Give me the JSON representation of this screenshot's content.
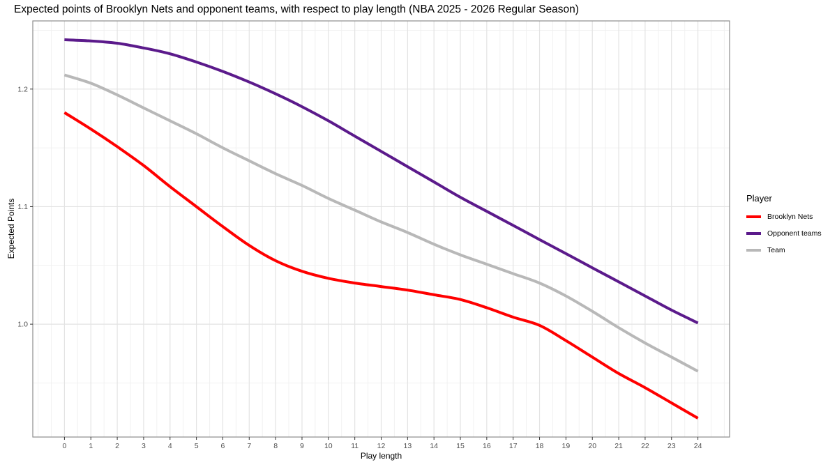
{
  "chart_data": {
    "type": "line",
    "title": "Expected points of Brooklyn Nets and opponent teams, with respect to play length (NBA 2025 - 2026 Regular Season)",
    "xlabel": "Play length",
    "ylabel": "Expected Points",
    "legend": {
      "title": "Player",
      "position": "right"
    },
    "x": [
      0,
      1,
      2,
      3,
      4,
      5,
      6,
      7,
      8,
      9,
      10,
      11,
      12,
      13,
      14,
      15,
      16,
      17,
      18,
      19,
      20,
      21,
      22,
      23,
      24
    ],
    "series": [
      {
        "name": "Brooklyn Nets",
        "color": "#ff0000",
        "values": [
          1.18,
          1.166,
          1.151,
          1.135,
          1.117,
          1.1,
          1.083,
          1.067,
          1.054,
          1.045,
          1.039,
          1.035,
          1.032,
          1.029,
          1.025,
          1.021,
          1.014,
          1.006,
          0.999,
          0.986,
          0.972,
          0.958,
          0.946,
          0.933,
          0.92
        ]
      },
      {
        "name": "Opponent teams",
        "color": "#5b1a8b",
        "values": [
          1.242,
          1.241,
          1.239,
          1.235,
          1.23,
          1.223,
          1.215,
          1.206,
          1.196,
          1.185,
          1.173,
          1.16,
          1.147,
          1.134,
          1.121,
          1.108,
          1.096,
          1.084,
          1.072,
          1.06,
          1.048,
          1.036,
          1.024,
          1.012,
          1.001
        ]
      },
      {
        "name": "Team",
        "color": "#b8b8b8",
        "values": [
          1.212,
          1.205,
          1.195,
          1.184,
          1.173,
          1.162,
          1.15,
          1.139,
          1.128,
          1.118,
          1.107,
          1.097,
          1.087,
          1.078,
          1.068,
          1.059,
          1.051,
          1.043,
          1.035,
          1.024,
          1.011,
          0.997,
          0.984,
          0.972,
          0.96
        ]
      }
    ],
    "axes": {
      "xlim": [
        -1.2,
        25.2
      ],
      "ylim": [
        0.904,
        1.258
      ],
      "x_ticks": [
        0,
        1,
        2,
        3,
        4,
        5,
        6,
        7,
        8,
        9,
        10,
        11,
        12,
        13,
        14,
        15,
        16,
        17,
        18,
        19,
        20,
        21,
        22,
        23,
        24
      ],
      "x_tick_labels": [
        "0",
        "1",
        "2",
        "3",
        "4",
        "5",
        "6",
        "7",
        "8",
        "9",
        "10",
        "11",
        "12",
        "13",
        "14",
        "15",
        "16",
        "17",
        "18",
        "19",
        "20",
        "21",
        "22",
        "23",
        "24"
      ],
      "y_ticks": [
        1.0,
        1.1,
        1.2
      ],
      "y_tick_labels": [
        "1.0",
        "1.1",
        "1.2"
      ],
      "x_minor_ticks": [
        -1,
        -0.5,
        0.5,
        1.5,
        2.5,
        3.5,
        4.5,
        5.5,
        6.5,
        7.5,
        8.5,
        9.5,
        10.5,
        11.5,
        12.5,
        13.5,
        14.5,
        15.5,
        16.5,
        17.5,
        18.5,
        19.5,
        20.5,
        21.5,
        22.5,
        23.5,
        24.5,
        25
      ],
      "y_minor_ticks": [
        0.95,
        1.05,
        1.15,
        1.25
      ]
    },
    "grid": {
      "on": true,
      "major_color": "#e3e3e3",
      "minor_color": "#f1f1f1",
      "panel_border_color": "#8c8c8c",
      "panel_background": "#ffffff",
      "tick_color": "#333333",
      "tick_label_color": "#4d4d4d"
    },
    "line_width": 4
  }
}
